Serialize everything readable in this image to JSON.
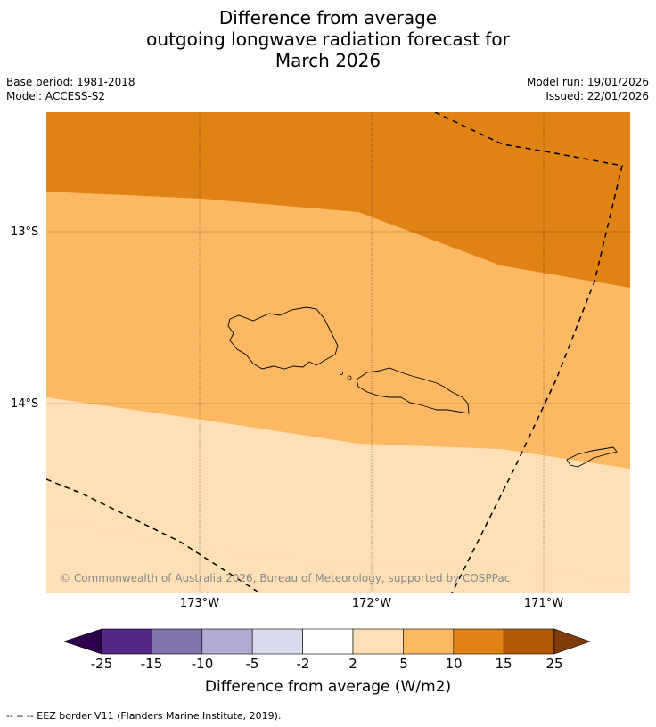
{
  "title": {
    "line1": "Difference from average",
    "line2": "outgoing longwave radiation forecast for",
    "line3": "March 2026"
  },
  "meta": {
    "base_period": "Base period: 1981-2018",
    "model": "Model: ACCESS-S2",
    "model_run": "Model run: 19/01/2026",
    "issued": "Issued: 22/01/2026"
  },
  "map": {
    "lat_labels": [
      "13°S",
      "14°S"
    ],
    "lon_labels": [
      "173°W",
      "172°W",
      "171°W"
    ],
    "copyright": "© Commonwealth of Australia 2026, Bureau of Meteorology, supported by COSPPac",
    "colors": {
      "band_10_15": "#e08214",
      "band_5_10": "#fdb863",
      "band_2_5": "#fee0b6",
      "coastline": "#000000",
      "eez": "#000000"
    }
  },
  "colorbar": {
    "ticks": [
      "-25",
      "-15",
      "-10",
      "-5",
      "-2",
      "2",
      "5",
      "10",
      "15",
      "25"
    ],
    "colors": [
      "#542788",
      "#8073ac",
      "#b2abd2",
      "#d8daeb",
      "#ffffff",
      "#fee0b6",
      "#fdb863",
      "#e08214",
      "#b35806"
    ],
    "under_color": "#2d004b",
    "over_color": "#7f3b08",
    "label": "Difference from average (W/m2)"
  },
  "footnote": "--  --  -- EEZ border V11 (Flanders Marine Institute, 2019)."
}
